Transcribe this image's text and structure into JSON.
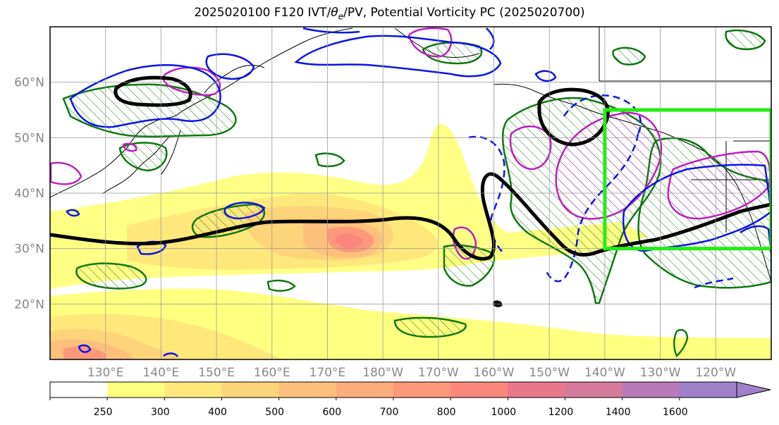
{
  "title": "2025020100 F120 IVT/θe/PV, Potential Vorticity PC (2025020700)",
  "map": {
    "projection": "PlateCarree",
    "lon_range": [
      120,
      250
    ],
    "lat_range": [
      10,
      70
    ],
    "lat_ticks": [
      {
        "value": 20,
        "label": "20°N"
      },
      {
        "value": 30,
        "label": "30°N"
      },
      {
        "value": 40,
        "label": "40°N"
      },
      {
        "value": 50,
        "label": "50°N"
      },
      {
        "value": 60,
        "label": "60°N"
      }
    ],
    "lon_ticks": [
      {
        "value": 130,
        "label": "130°E"
      },
      {
        "value": 140,
        "label": "140°E"
      },
      {
        "value": 150,
        "label": "150°E"
      },
      {
        "value": 160,
        "label": "160°E"
      },
      {
        "value": 170,
        "label": "170°E"
      },
      {
        "value": 180,
        "label": "180°W"
      },
      {
        "value": 190,
        "label": "170°W"
      },
      {
        "value": 200,
        "label": "160°W"
      },
      {
        "value": 210,
        "label": "150°W"
      },
      {
        "value": 220,
        "label": "140°W"
      },
      {
        "value": 230,
        "label": "130°W"
      },
      {
        "value": 240,
        "label": "120°W"
      }
    ],
    "gridlines": true,
    "highlight_box": {
      "lon": [
        220,
        250
      ],
      "lat": [
        30,
        55
      ],
      "color": "#22ee11"
    },
    "colors": {
      "coastline": "#000000",
      "pv_hatched": "#117711",
      "pv_magenta": "#bb22bb",
      "contour_blue": "#0a14e6",
      "theta_e_line": "#000000"
    }
  },
  "colorbar": {
    "levels": [
      "250",
      "300",
      "400",
      "500",
      "600",
      "700",
      "800",
      "1000",
      "1200",
      "1400",
      "1600"
    ],
    "colors": [
      "#ffffff",
      "#ffff80",
      "#fee87c",
      "#fed47a",
      "#fdc07c",
      "#fdac7c",
      "#fd987a",
      "#fb877c",
      "#e8778a",
      "#d67a9c",
      "#b77ab8",
      "#a080c8"
    ],
    "extend": "max"
  }
}
